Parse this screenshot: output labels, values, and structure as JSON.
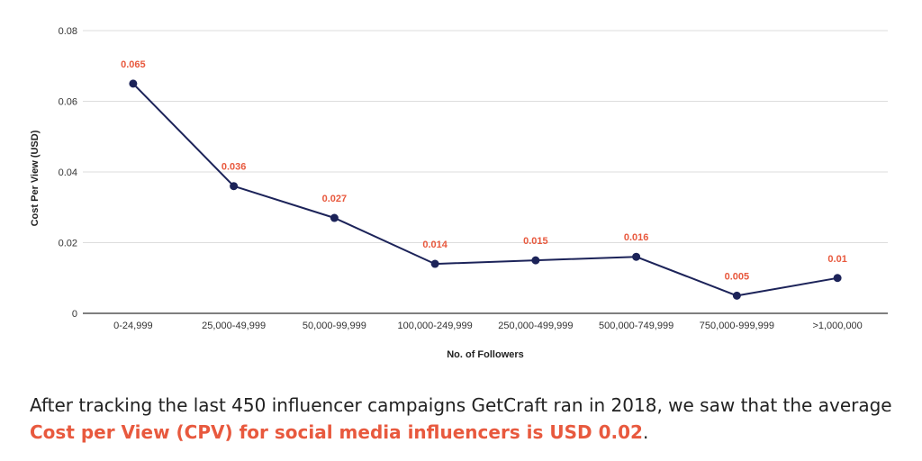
{
  "chart_data": {
    "type": "line",
    "title": "",
    "xlabel": "No. of Followers",
    "ylabel": "Cost Per View (USD)",
    "categories": [
      "0-24,999",
      "25,000-49,999",
      "50,000-99,999",
      "100,000-249,999",
      "250,000-499,999",
      "500,000-749,999",
      "750,000-999,999",
      ">1,000,000"
    ],
    "series": [
      {
        "values": [
          0.065,
          0.036,
          0.027,
          0.014,
          0.015,
          0.016,
          0.005,
          0.01
        ]
      }
    ],
    "data_labels": [
      "0.065",
      "0.036",
      "0.027",
      "0.014",
      "0.015",
      "0.016",
      "0.005",
      "0.01"
    ],
    "yticks": [
      "0",
      "0.02",
      "0.04",
      "0.06",
      "0.08"
    ],
    "ylim": [
      0,
      0.08
    ],
    "grid": true,
    "legend": "none",
    "colors": {
      "line": "#1c2359",
      "label": "#e8593e",
      "grid": "#dddddd"
    }
  },
  "caption": {
    "before": "After tracking the last 450 influencer campaigns GetCraft ran in 2018, we saw that the average ",
    "highlight": "Cost per View (CPV) for social media influencers is USD 0.02",
    "after": ".",
    "highlight_color": "#e8593e"
  }
}
